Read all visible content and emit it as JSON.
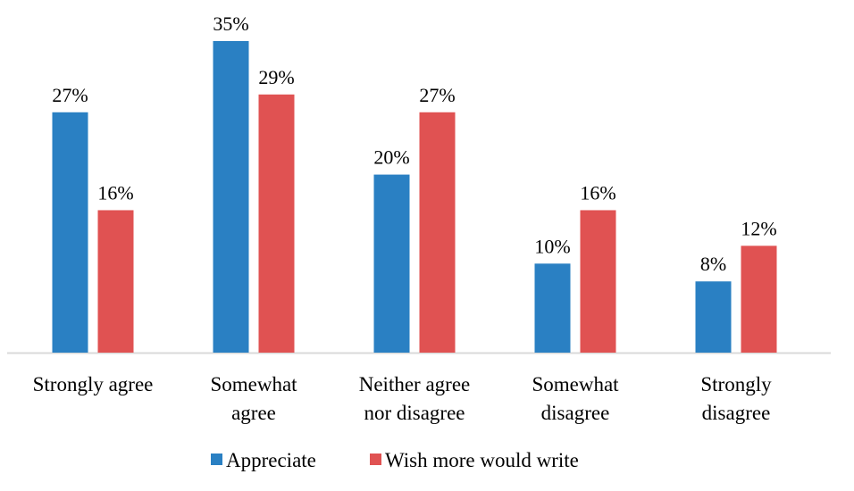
{
  "chart_data": {
    "type": "bar",
    "title": "",
    "xlabel": "",
    "ylabel": "",
    "ylim": [
      0,
      35
    ],
    "grid": false,
    "legend_position": "bottom",
    "categories": [
      [
        "Strongly agree"
      ],
      [
        "Somewhat",
        "agree"
      ],
      [
        "Neither agree",
        "nor disagree"
      ],
      [
        "Somewhat",
        "disagree"
      ],
      [
        "Strongly",
        "disagree"
      ]
    ],
    "series": [
      {
        "name": "Appreciate",
        "color": "#2a80c3",
        "values": [
          27,
          35,
          20,
          10,
          8
        ],
        "labels": [
          "27%",
          "35%",
          "20%",
          "10%",
          "8%"
        ]
      },
      {
        "name": "Wish more would write",
        "color": "#e05252",
        "values": [
          16,
          29,
          27,
          16,
          12
        ],
        "labels": [
          "16%",
          "29%",
          "27%",
          "16%",
          "12%"
        ]
      }
    ]
  }
}
